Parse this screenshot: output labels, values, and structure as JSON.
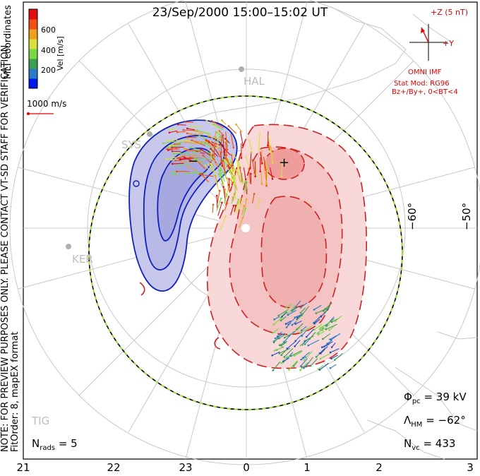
{
  "title": "23/Sep/2000 15:00–15:02 UT",
  "colorbar": {
    "label": "Vel [m/s]",
    "ticks": [
      "600",
      "400",
      "200"
    ],
    "colors": [
      "#0018f0",
      "#2a7cc8",
      "#3aa050",
      "#78d848",
      "#d8e040",
      "#f0a020",
      "#f05010",
      "#e01010"
    ]
  },
  "ref_vector": {
    "label": "1000 m/s"
  },
  "imf": {
    "z_label": "+Z (5 nT)",
    "y_label": "+Y",
    "source": "OMNI IMF",
    "model": "Stat Mod: RG96",
    "condition": "Bz+/By+, 0<BT<4"
  },
  "coords_label": "MLT coordinates",
  "note": "NOTE: FOR PREVIEW PURPOSES ONLY. PLEASE CONTACT VT-SD STAFF FOR VERIFICATION.",
  "fit": "FitOrder: 8, mapEX format",
  "stats": {
    "phi_symbol": "Φ",
    "phi_sub": "pc",
    "phi_value": "= 39 kV",
    "lambda_symbol": "Λ",
    "lambda_sub": "HM",
    "lambda_value": "= −62°",
    "nvc_symbol": "N",
    "nvc_sub": "vc",
    "nvc_value": "= 433",
    "nrads_symbol": "N",
    "nrads_sub": "rads",
    "nrads_value": "= 5"
  },
  "lat_labels": [
    "−60°",
    "−50°"
  ],
  "mlt_labels": [
    "21",
    "22",
    "23",
    "0",
    "1",
    "2",
    "3"
  ],
  "stations": [
    "HAL",
    "SYS",
    "KER",
    "TIG"
  ],
  "extrema": [
    "−",
    "+"
  ],
  "colors": {
    "positive": "#e02020",
    "negative": "#1020c0",
    "boundary_green": "#9de040"
  }
}
